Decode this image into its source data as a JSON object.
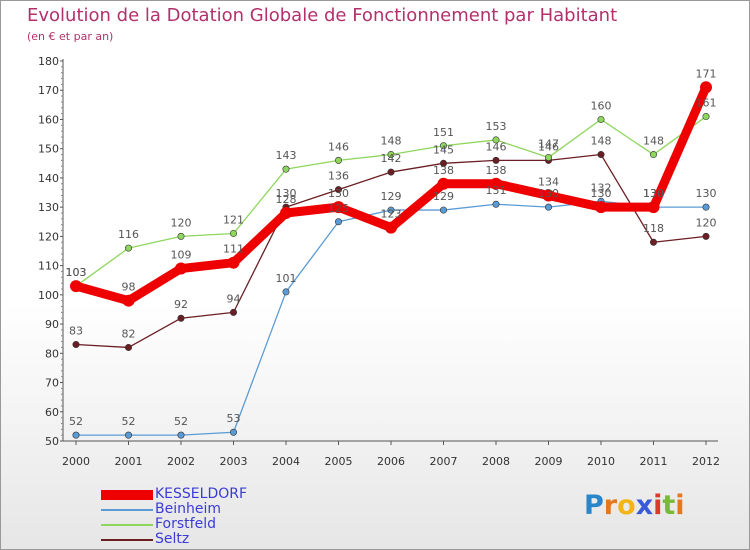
{
  "header": {
    "title": "Evolution de la Dotation Globale de Fonctionnement par Habitant",
    "subtitle": "(en € et par an)"
  },
  "chart_data": {
    "type": "line",
    "title": "Evolution de la Dotation Globale de Fonctionnement par Habitant",
    "subtitle": "(en € et par an)",
    "xlabel": "",
    "ylabel": "",
    "ylim": [
      50,
      180
    ],
    "ytick_step": 10,
    "grid": "none",
    "x": [
      "2000",
      "2001",
      "2002",
      "2003",
      "2004",
      "2005",
      "2006",
      "2007",
      "2008",
      "2009",
      "2010",
      "2011",
      "2012"
    ],
    "series": [
      {
        "name": "KESSELDORF",
        "color": "#ee0000",
        "values": [
          103,
          98,
          109,
          111,
          128,
          130,
          123,
          138,
          138,
          134,
          130,
          130,
          171
        ]
      },
      {
        "name": "Beinheim",
        "color": "#5b9bd5",
        "values": [
          52,
          52,
          52,
          53,
          101,
          125,
          129,
          129,
          131,
          130,
          132,
          130,
          130
        ]
      },
      {
        "name": "Forstfeld",
        "color": "#8fd65c",
        "values": [
          103,
          116,
          120,
          121,
          143,
          146,
          148,
          151,
          153,
          147,
          160,
          148,
          161
        ]
      },
      {
        "name": "Seltz",
        "color": "#6b1e23",
        "values": [
          83,
          82,
          92,
          94,
          130,
          136,
          142,
          145,
          146,
          146,
          148,
          118,
          120
        ]
      }
    ],
    "legend_position": "bottom-left"
  },
  "logo": {
    "letters": [
      {
        "ch": "P",
        "color": "#2a86c9"
      },
      {
        "ch": "r",
        "color": "#e3781c"
      },
      {
        "ch": "o",
        "color": "#f2b515"
      },
      {
        "ch": "x",
        "color": "#3a5bd9"
      },
      {
        "ch": "i",
        "color": "#d93a2b"
      },
      {
        "ch": "t",
        "color": "#79bb37"
      },
      {
        "ch": "i",
        "color": "#e3781c"
      }
    ]
  }
}
